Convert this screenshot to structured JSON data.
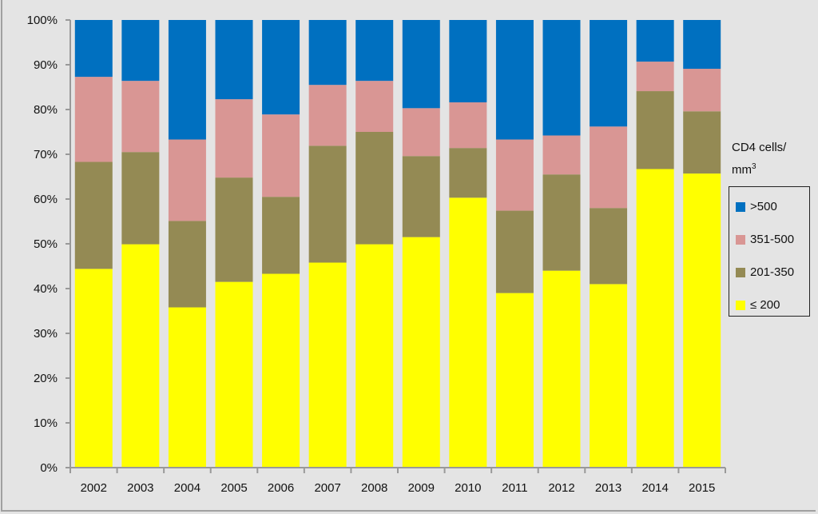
{
  "chart_data": {
    "type": "bar",
    "stacked": true,
    "title": "",
    "xlabel": "",
    "ylabel": "",
    "ylim": [
      0,
      100
    ],
    "yticks": [
      "0%",
      "10%",
      "20%",
      "30%",
      "40%",
      "50%",
      "60%",
      "70%",
      "80%",
      "90%",
      "100%"
    ],
    "categories": [
      "2002",
      "2003",
      "2004",
      "2005",
      "2006",
      "2007",
      "2008",
      "2009",
      "2010",
      "2011",
      "2012",
      "2013",
      "2014",
      "2015"
    ],
    "legend_title": "CD4 cells/",
    "legend_title_line2": "mm",
    "legend_title_sup": "3",
    "legend_placement": "right",
    "series": [
      {
        "name": "≤ 200",
        "color": "#ffff00",
        "values": [
          44.4,
          49.9,
          35.8,
          41.5,
          43.3,
          45.8,
          49.9,
          51.5,
          60.3,
          39.0,
          44.0,
          41.0,
          66.7,
          65.7
        ]
      },
      {
        "name": "201-350",
        "color": "#948a54",
        "values": [
          23.9,
          20.6,
          19.3,
          23.3,
          17.2,
          26.1,
          25.1,
          18.1,
          11.1,
          18.4,
          21.5,
          17.0,
          17.4,
          13.9
        ]
      },
      {
        "name": "351-500",
        "color": "#d99694",
        "values": [
          19.0,
          15.9,
          18.2,
          17.5,
          18.4,
          13.6,
          11.4,
          10.7,
          10.2,
          15.9,
          8.7,
          18.2,
          6.6,
          9.5
        ]
      },
      {
        "name": ">500",
        "color": "#0070c0",
        "values": [
          12.7,
          13.6,
          26.7,
          17.7,
          21.1,
          14.5,
          13.6,
          19.7,
          18.4,
          26.7,
          25.8,
          23.8,
          9.3,
          10.9
        ]
      }
    ]
  }
}
